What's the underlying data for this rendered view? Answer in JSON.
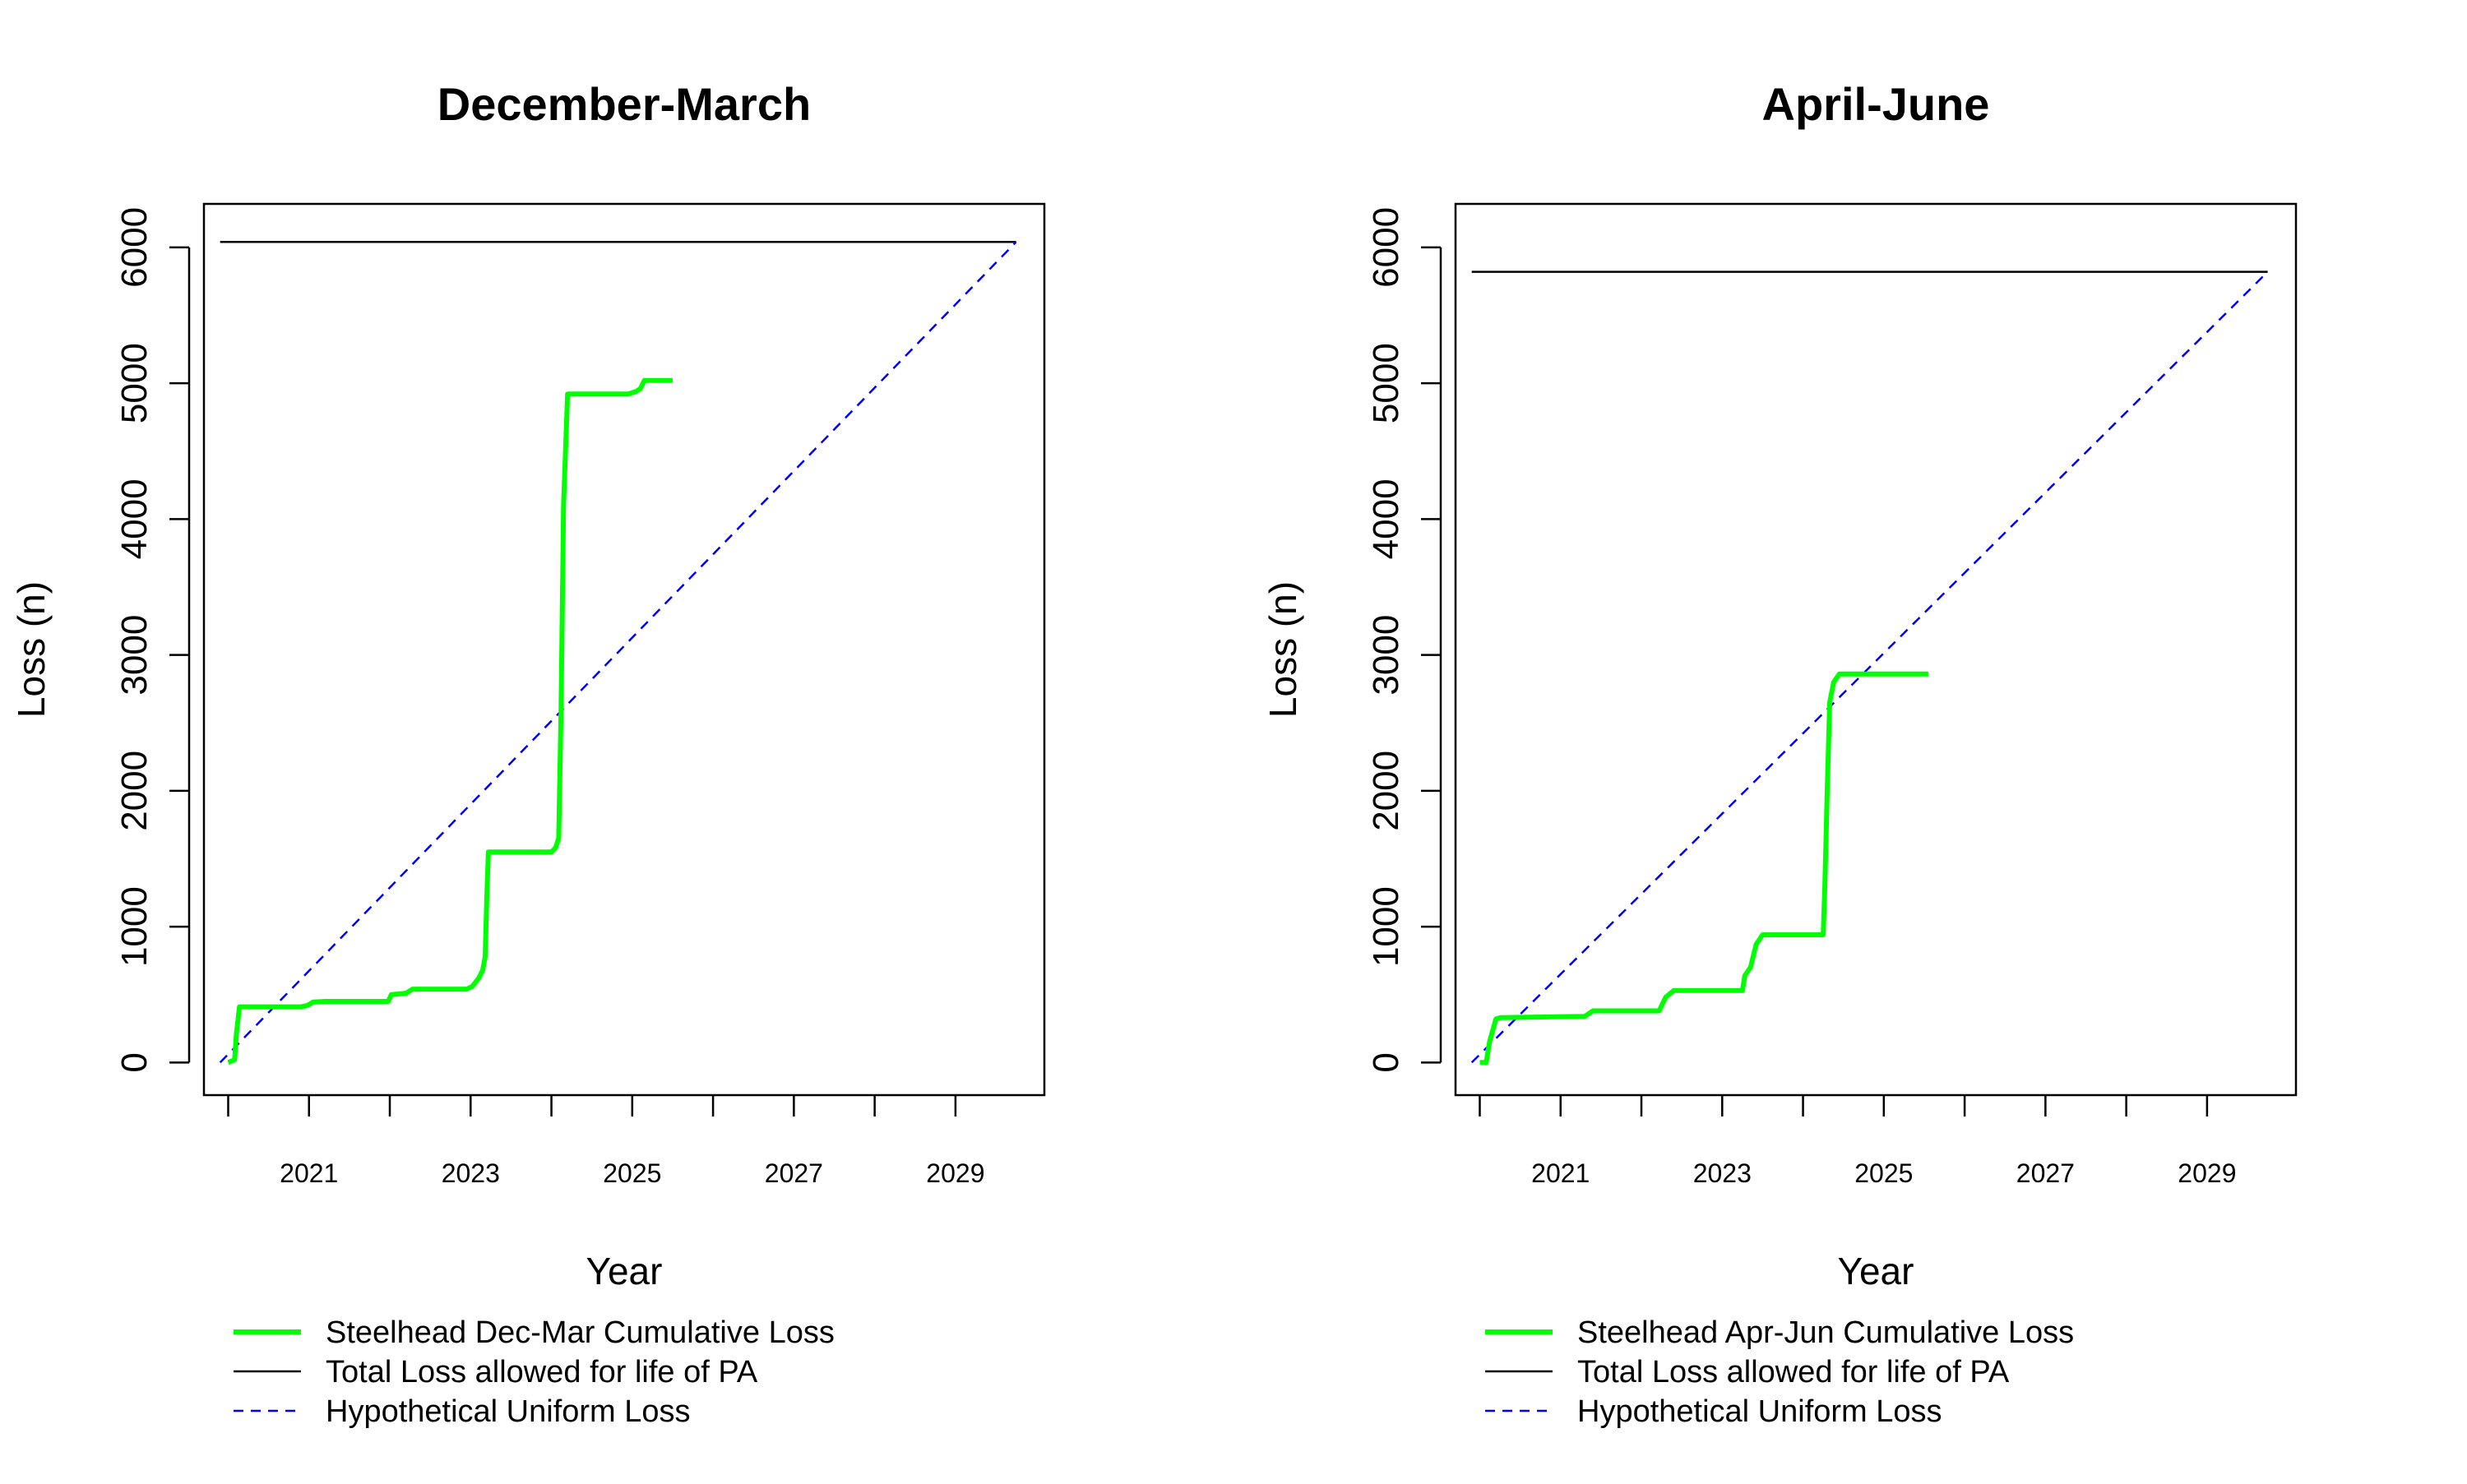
{
  "chart_data": [
    {
      "type": "line",
      "title": "December-March",
      "xlabel": "Year",
      "ylabel": "Loss (n)",
      "xlim": [
        2019.7,
        2030.1
      ],
      "ylim": [
        -240,
        6320
      ],
      "x_ticks": [
        2020,
        2021,
        2022,
        2023,
        2024,
        2025,
        2026,
        2027,
        2028,
        2029
      ],
      "x_tick_labels": [
        "",
        "2021",
        "",
        "2023",
        "",
        "2025",
        "",
        "2027",
        "",
        "2029"
      ],
      "y_ticks": [
        0,
        1000,
        2000,
        3000,
        4000,
        5000,
        6000
      ],
      "y_tick_labels": [
        "0",
        "1000",
        "2000",
        "3000",
        "4000",
        "5000",
        "6000"
      ],
      "legend_position": "bottom",
      "series": [
        {
          "name": "Steelhead Dec-Mar Cumulative Loss",
          "color": "#00ff00",
          "style": "solid-thick",
          "x": [
            2020.0,
            2020.08,
            2020.1,
            2020.14,
            2020.9,
            2020.98,
            2021.05,
            2021.2,
            2021.98,
            2022.02,
            2022.2,
            2022.28,
            2022.95,
            2023.02,
            2023.1,
            2023.15,
            2023.18,
            2023.2,
            2023.22,
            2024.0,
            2024.05,
            2024.09,
            2024.12,
            2024.15,
            2024.2,
            2024.28,
            2024.95,
            2025.05,
            2025.1,
            2025.15,
            2025.5
          ],
          "y": [
            0,
            20,
            200,
            410,
            410,
            420,
            445,
            450,
            450,
            500,
            510,
            540,
            540,
            560,
            620,
            680,
            780,
            1200,
            1550,
            1550,
            1580,
            1650,
            2600,
            4100,
            4920,
            4920,
            4920,
            4940,
            4960,
            5020,
            5020
          ]
        },
        {
          "name": "Total Loss allowed for life of PA",
          "color": "#000000",
          "style": "solid",
          "x": [
            2019.9,
            2029.75
          ],
          "y": [
            6040,
            6040
          ]
        },
        {
          "name": "Hypothetical Uniform Loss",
          "color": "#0000ff",
          "style": "dashed",
          "x": [
            2019.9,
            2029.75
          ],
          "y": [
            0,
            6040
          ]
        }
      ]
    },
    {
      "type": "line",
      "title": "April-June",
      "xlabel": "Year",
      "ylabel": "Loss (n)",
      "xlim": [
        2019.7,
        2030.1
      ],
      "ylim": [
        -240,
        6320
      ],
      "x_ticks": [
        2020,
        2021,
        2022,
        2023,
        2024,
        2025,
        2026,
        2027,
        2028,
        2029
      ],
      "x_tick_labels": [
        "",
        "2021",
        "",
        "2023",
        "",
        "2025",
        "",
        "2027",
        "",
        "2029"
      ],
      "y_ticks": [
        0,
        1000,
        2000,
        3000,
        4000,
        5000,
        6000
      ],
      "y_tick_labels": [
        "0",
        "1000",
        "2000",
        "3000",
        "4000",
        "5000",
        "6000"
      ],
      "legend_position": "bottom",
      "series": [
        {
          "name": "Steelhead Apr-Jun Cumulative Loss",
          "color": "#00ff00",
          "style": "solid-thick",
          "x": [
            2020.0,
            2020.08,
            2020.12,
            2020.2,
            2020.25,
            2021.3,
            2021.4,
            2022.22,
            2022.3,
            2022.4,
            2023.25,
            2023.28,
            2023.35,
            2023.42,
            2023.5,
            2024.25,
            2024.27,
            2024.3,
            2024.33,
            2024.38,
            2024.45,
            2025.55
          ],
          "y": [
            0,
            0,
            150,
            320,
            330,
            340,
            380,
            380,
            480,
            530,
            530,
            640,
            700,
            870,
            940,
            940,
            1300,
            2000,
            2650,
            2800,
            2860,
            2860
          ]
        },
        {
          "name": "Total Loss allowed for life of PA",
          "color": "#000000",
          "style": "solid",
          "x": [
            2019.9,
            2029.75
          ],
          "y": [
            5820,
            5820
          ]
        },
        {
          "name": "Hypothetical Uniform Loss",
          "color": "#0000ff",
          "style": "dashed",
          "x": [
            2019.9,
            2029.75
          ],
          "y": [
            0,
            5820
          ]
        }
      ]
    }
  ]
}
